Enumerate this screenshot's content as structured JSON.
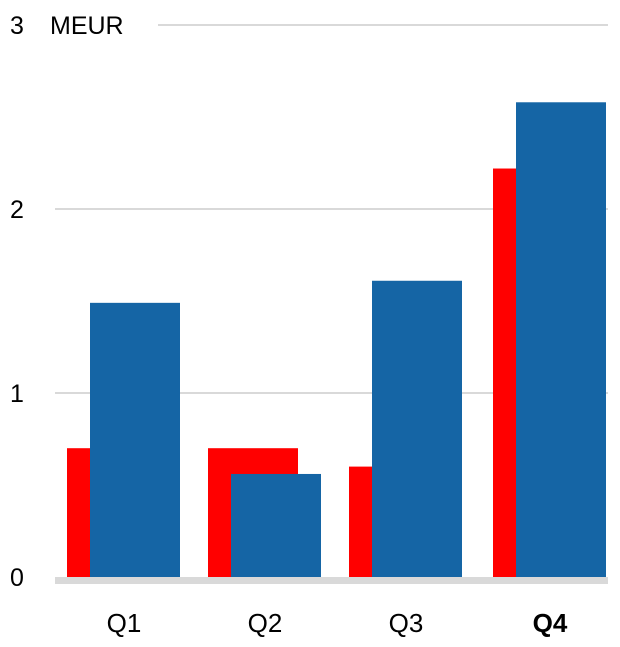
{
  "chart_data": {
    "type": "bar",
    "categories": [
      "Q1",
      "Q2",
      "Q3",
      "Q4"
    ],
    "highlighted_category": "Q4",
    "unit_label": "MEUR",
    "ylim": [
      0,
      3
    ],
    "yticks": [
      0,
      1,
      2,
      3
    ],
    "grid": true,
    "series": [
      {
        "values": [
          0.7,
          0.7,
          0.6,
          2.22
        ],
        "color": "#ff0000"
      },
      {
        "values": [
          1.49,
          0.56,
          1.61,
          2.58
        ],
        "color": "#1565a5"
      }
    ]
  }
}
